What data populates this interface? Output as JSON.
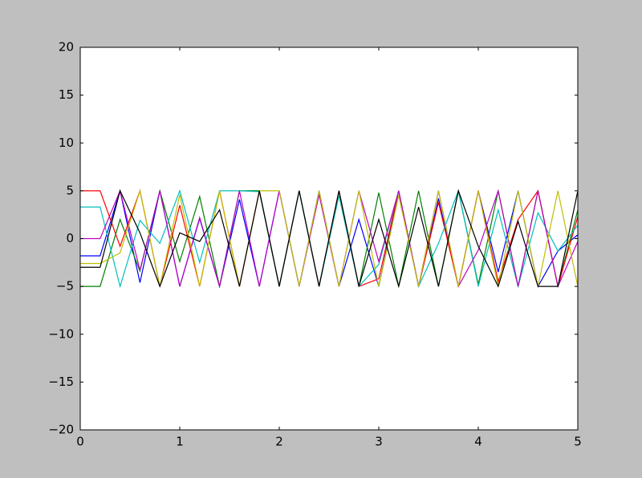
{
  "chart_data": {
    "type": "line",
    "x": [
      0,
      0.2,
      0.4,
      0.6,
      0.8,
      1.0,
      1.2,
      1.4,
      1.6,
      1.8,
      2.0,
      2.2,
      2.4,
      2.6,
      2.8,
      3.0,
      3.2,
      3.4,
      3.6,
      3.8,
      4.0,
      4.2,
      4.4,
      4.6,
      4.8,
      5.0
    ],
    "series": [
      {
        "color": "#0000ff",
        "values": [
          -1.8,
          -1.8,
          5,
          -4.6,
          5,
          -5,
          2.1,
          -5,
          4.1,
          -5,
          5,
          -5,
          5,
          -5,
          2.0,
          -5,
          5,
          -5,
          4.2,
          -5,
          5,
          -3.5,
          5,
          -5,
          -1.3,
          0.4
        ]
      },
      {
        "color": "#008000",
        "values": [
          -5,
          -5,
          2.0,
          -3.4,
          5,
          -2.4,
          4.4,
          -5,
          5,
          5,
          -5,
          5,
          -5,
          5,
          -5,
          4.8,
          -5,
          5,
          -5,
          5,
          -4.8,
          5,
          -5,
          5,
          -5,
          3.0
        ]
      },
      {
        "color": "#ff0000",
        "values": [
          5,
          5,
          -0.8,
          5,
          -5,
          3.5,
          -5,
          5,
          -5,
          5,
          -5,
          5,
          -5,
          5,
          -5,
          -4.2,
          5,
          -5,
          3.8,
          -5,
          5,
          -4.5,
          2.0,
          5,
          -5,
          2.3
        ]
      },
      {
        "color": "#00bfbf",
        "values": [
          3.3,
          3.3,
          -5,
          1.9,
          -0.5,
          5,
          -2.5,
          5,
          5,
          4.9,
          -5,
          5,
          -5,
          4.5,
          -5,
          -2.7,
          5,
          -5,
          -0.5,
          5,
          -5,
          3.0,
          -5,
          2.7,
          -1.3,
          1.4
        ]
      },
      {
        "color": "#bf00bf",
        "values": [
          0,
          0,
          5,
          -3.3,
          5,
          -5,
          2.2,
          -5,
          5,
          -5,
          5,
          -5,
          4.6,
          -5,
          5,
          -2.4,
          5,
          -5,
          5,
          -5,
          -1.2,
          5,
          -5,
          5,
          -5,
          -0.3
        ]
      },
      {
        "color": "#bfbf00",
        "values": [
          -2.6,
          -2.6,
          -1.5,
          5,
          -5,
          4.6,
          -5,
          5,
          -5,
          5,
          5,
          -5,
          5,
          -5,
          5,
          -5,
          4.5,
          -5,
          5,
          -5,
          5,
          -5,
          5,
          -5,
          5,
          -5
        ]
      },
      {
        "color": "#000000",
        "values": [
          -3,
          -3,
          5,
          0.6,
          -5,
          0.6,
          -0.3,
          3,
          -5,
          5,
          -5,
          5,
          -5,
          5,
          -5,
          2.0,
          -5,
          3.3,
          -5,
          5,
          -0.8,
          -5,
          1.8,
          -5,
          -5,
          5
        ]
      }
    ],
    "xlim": [
      0,
      5
    ],
    "xticks": [
      0,
      1,
      2,
      3,
      4,
      5
    ],
    "ylim": [
      -20,
      20
    ],
    "yticks": [
      {
        "value": -20,
        "label": "−20"
      },
      {
        "value": -15,
        "label": "−15"
      },
      {
        "value": -10,
        "label": "−10"
      },
      {
        "value": -5,
        "label": "−5"
      },
      0,
      5,
      10,
      15,
      20
    ],
    "grid": false
  }
}
